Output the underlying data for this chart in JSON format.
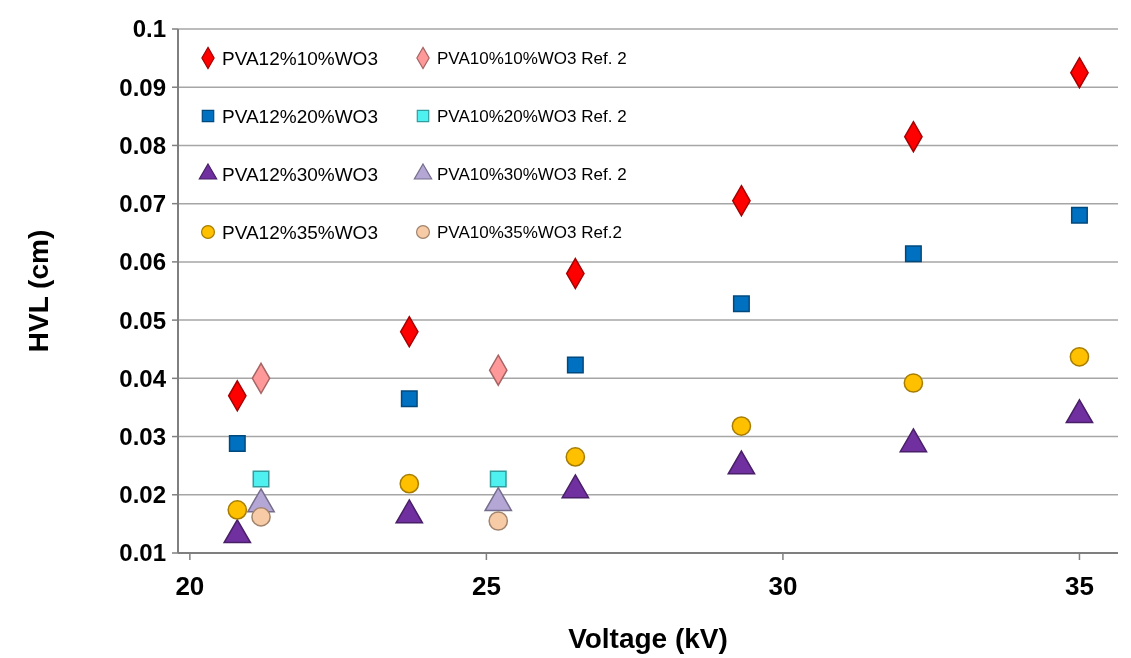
{
  "chart_data": {
    "type": "scatter",
    "xlabel": "Voltage (kV)",
    "ylabel": "HVL (cm)",
    "xlim": [
      19.8,
      35.65
    ],
    "xticks": [
      20,
      25,
      30,
      35
    ],
    "ylim": [
      0.01,
      0.1
    ],
    "yticks": [
      0.01,
      0.02,
      0.03,
      0.04,
      0.05,
      0.06,
      0.07,
      0.08,
      0.09,
      0.1
    ],
    "grid": "y",
    "legend": "top left",
    "series": [
      {
        "name": "PVA12%10%WO3",
        "color": "#ff0000",
        "marker": "diamond",
        "x": [
          20.8,
          23.7,
          26.5,
          29.3,
          32.2,
          35
        ],
        "values": [
          0.037,
          0.048,
          0.058,
          0.0705,
          0.0815,
          0.0925
        ]
      },
      {
        "name": "PVA12%20%WO3",
        "color": "#0070c0",
        "marker": "square",
        "x": [
          20.8,
          23.7,
          26.5,
          29.3,
          32.2,
          35
        ],
        "values": [
          0.0288,
          0.0365,
          0.0423,
          0.0528,
          0.0614,
          0.068
        ]
      },
      {
        "name": "PVA12%30%WO3",
        "color": "#7030a0",
        "marker": "triangle",
        "x": [
          20.8,
          23.7,
          26.5,
          29.3,
          32.2,
          35
        ],
        "values": [
          0.0131,
          0.0165,
          0.0208,
          0.0249,
          0.0287,
          0.0337
        ]
      },
      {
        "name": "PVA12%35%WO3",
        "color": "#ffc000",
        "marker": "circle",
        "x": [
          20.8,
          23.7,
          26.5,
          29.3,
          32.2,
          35
        ],
        "values": [
          0.0174,
          0.0219,
          0.0265,
          0.0318,
          0.0392,
          0.0437
        ]
      },
      {
        "name": "PVA10%10%WO3 Ref. 2",
        "color": "#ff9999",
        "marker": "diamond",
        "x": [
          21.2,
          25.2
        ],
        "values": [
          0.04,
          0.0414
        ]
      },
      {
        "name": "PVA10%20%WO3 Ref. 2",
        "color": "#4ff0f0",
        "marker": "square",
        "x": [
          21.2,
          25.2
        ],
        "values": [
          0.0227,
          0.0227
        ]
      },
      {
        "name": "PVA10%30%WO3 Ref. 2",
        "color": "#b4a7d6",
        "marker": "triangle",
        "x": [
          21.2,
          25.2
        ],
        "values": [
          0.0184,
          0.0186
        ]
      },
      {
        "name": "PVA10%35%WO3 Ref.2",
        "color": "#f8cba7",
        "marker": "circle",
        "x": [
          21.2,
          25.2
        ],
        "values": [
          0.0162,
          0.0155
        ]
      }
    ]
  }
}
